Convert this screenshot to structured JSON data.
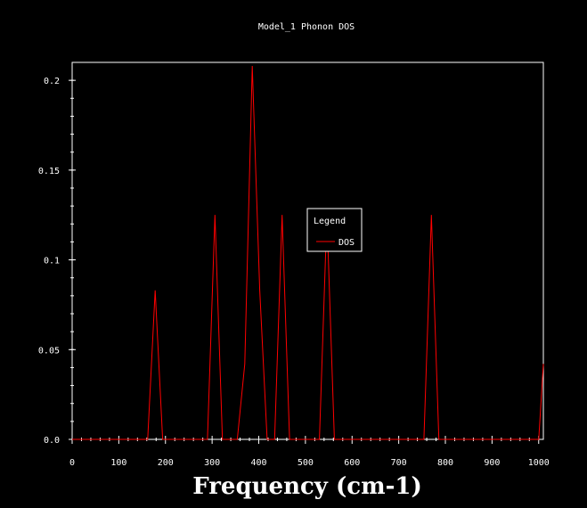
{
  "chart_data": {
    "type": "line",
    "title": "Model_1 Phonon DOS",
    "xlabel": "Frequency (cm-1)",
    "ylabel": "",
    "xlim": [
      0,
      1010
    ],
    "ylim": [
      0,
      0.21
    ],
    "x_ticks": [
      "0",
      "100",
      "200",
      "300",
      "400",
      "500",
      "600",
      "700",
      "800",
      "900",
      "1000"
    ],
    "y_ticks": [
      "0.0",
      "0.05",
      "0.1",
      "0.15",
      "0.2"
    ],
    "grid": false,
    "legend": {
      "title": "Legend",
      "position": "center-right"
    },
    "series": [
      {
        "name": "DOS",
        "color": "#ff0000",
        "x": [
          0,
          162,
          178,
          194,
          290,
          306,
          322,
          354,
          370,
          386,
          402,
          418,
          434,
          450,
          466,
          530,
          546,
          562,
          754,
          770,
          786,
          1000,
          1010
        ],
        "y": [
          0,
          0,
          0.083,
          0,
          0,
          0.125,
          0,
          0,
          0.042,
          0.208,
          0.083,
          0,
          0,
          0.125,
          0,
          0,
          0.125,
          0,
          0,
          0.125,
          0,
          0,
          0.042
        ]
      }
    ]
  }
}
